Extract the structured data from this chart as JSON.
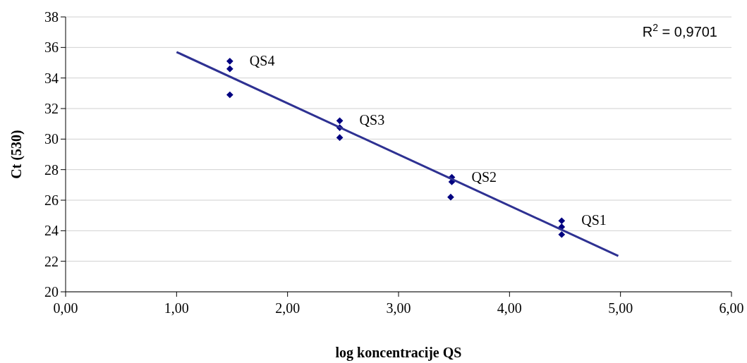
{
  "chart_data": {
    "type": "scatter",
    "xlabel": "log koncentracije QS",
    "ylabel": "Ct (530)",
    "xlim": [
      0,
      6
    ],
    "ylim": [
      20,
      38
    ],
    "xticks": [
      {
        "value": 0,
        "label": "0,00"
      },
      {
        "value": 1,
        "label": "1,00"
      },
      {
        "value": 2,
        "label": "2,00"
      },
      {
        "value": 3,
        "label": "3,00"
      },
      {
        "value": 4,
        "label": "4,00"
      },
      {
        "value": 5,
        "label": "5,00"
      },
      {
        "value": 6,
        "label": "6,00"
      }
    ],
    "yticks": [
      20,
      22,
      24,
      26,
      28,
      30,
      32,
      34,
      36,
      38
    ],
    "grid": "y",
    "marker": "diamond",
    "series": [
      {
        "color": "#000080",
        "x": [
          1.48,
          1.48,
          1.48,
          2.47,
          2.47,
          2.47,
          3.48,
          3.48,
          3.47,
          4.47,
          4.47,
          4.47
        ],
        "values": [
          35.1,
          34.6,
          32.9,
          31.2,
          30.75,
          30.1,
          27.5,
          27.2,
          26.2,
          24.65,
          24.25,
          23.75
        ]
      },
      {
        "type": "line",
        "color": "#2e3192",
        "marker": "none",
        "line_style": "solid",
        "x": [
          1.0,
          4.98
        ],
        "values": [
          35.7,
          22.35
        ]
      }
    ],
    "annotations": [
      {
        "text": "QS4",
        "x": 1.48,
        "y": 35.1
      },
      {
        "text": "QS3",
        "x": 2.47,
        "y": 31.2
      },
      {
        "text": "QS2",
        "x": 3.48,
        "y": 27.5
      },
      {
        "text": "QS1",
        "x": 4.47,
        "y": 24.65
      },
      "R$^{2}$ = 0,9701"
    ]
  }
}
